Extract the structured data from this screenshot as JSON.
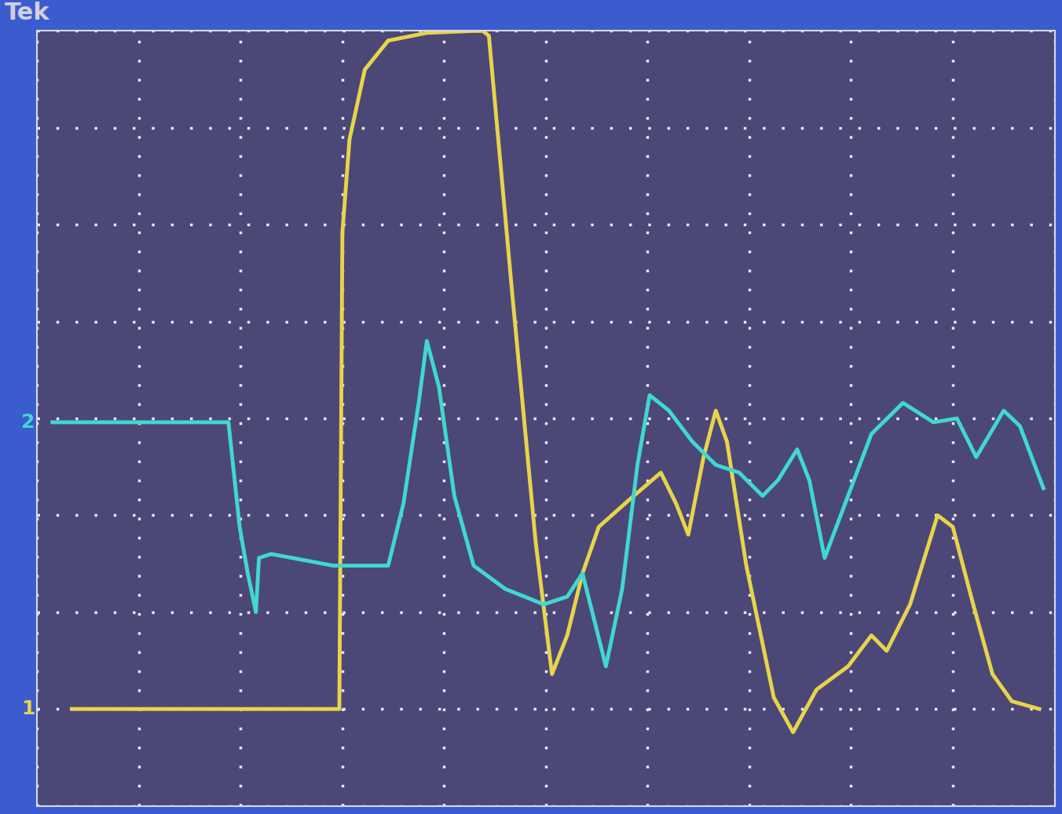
{
  "chart_data": {
    "type": "line",
    "title": "Tek",
    "xlim": [
      0,
      10
    ],
    "ylim": [
      -4,
      4
    ],
    "xticks": [
      0,
      1,
      2,
      3,
      4,
      5,
      6,
      7,
      8,
      9,
      10
    ],
    "yticks": [
      -4,
      -3,
      -2,
      -1,
      0,
      1,
      2,
      3,
      4
    ],
    "grid": true,
    "tick_labels": false,
    "series": [
      {
        "name": "1",
        "color": "#e8d44a",
        "x": [
          0.34,
          2.97,
          3.0,
          3.07,
          3.22,
          3.45,
          3.83,
          4.29,
          4.38,
          4.44,
          4.67,
          4.9,
          5.06,
          5.21,
          5.36,
          5.52,
          5.82,
          6.13,
          6.28,
          6.4,
          6.55,
          6.67,
          6.78,
          6.97,
          7.24,
          7.43,
          7.66,
          7.97,
          8.2,
          8.35,
          8.58,
          8.85,
          9.0,
          9.2,
          9.39,
          9.58,
          9.85
        ],
        "values": [
          -3.0,
          -3.0,
          1.92,
          2.88,
          3.6,
          3.9,
          3.98,
          4.0,
          4.0,
          3.95,
          1.28,
          -1.28,
          -2.64,
          -2.24,
          -1.6,
          -1.12,
          -0.84,
          -0.56,
          -0.88,
          -1.2,
          -0.4,
          0.08,
          -0.24,
          -1.52,
          -2.88,
          -3.24,
          -2.8,
          -2.56,
          -2.24,
          -2.4,
          -1.92,
          -1.0,
          -1.12,
          -1.92,
          -2.64,
          -2.92,
          -3.0
        ]
      },
      {
        "name": "2",
        "color": "#40d8d0",
        "x": [
          0.15,
          1.88,
          1.99,
          2.07,
          2.15,
          2.18,
          2.3,
          2.91,
          3.45,
          3.6,
          3.75,
          3.83,
          3.95,
          4.1,
          4.29,
          4.6,
          4.98,
          5.21,
          5.36,
          5.59,
          5.75,
          5.9,
          6.02,
          6.21,
          6.44,
          6.67,
          6.9,
          7.13,
          7.28,
          7.47,
          7.59,
          7.74,
          7.97,
          8.2,
          8.51,
          8.81,
          9.04,
          9.23,
          9.5,
          9.66,
          9.89
        ],
        "values": [
          -0.04,
          -0.04,
          -1.12,
          -1.6,
          -2.0,
          -1.44,
          -1.4,
          -1.52,
          -1.52,
          -0.88,
          0.16,
          0.8,
          0.32,
          -0.8,
          -1.52,
          -1.76,
          -1.92,
          -1.84,
          -1.6,
          -2.56,
          -1.76,
          -0.48,
          0.24,
          0.08,
          -0.24,
          -0.48,
          -0.56,
          -0.8,
          -0.64,
          -0.32,
          -0.64,
          -1.44,
          -0.8,
          -0.16,
          0.16,
          -0.04,
          0.0,
          -0.4,
          0.08,
          -0.08,
          -0.72
        ]
      }
    ]
  }
}
